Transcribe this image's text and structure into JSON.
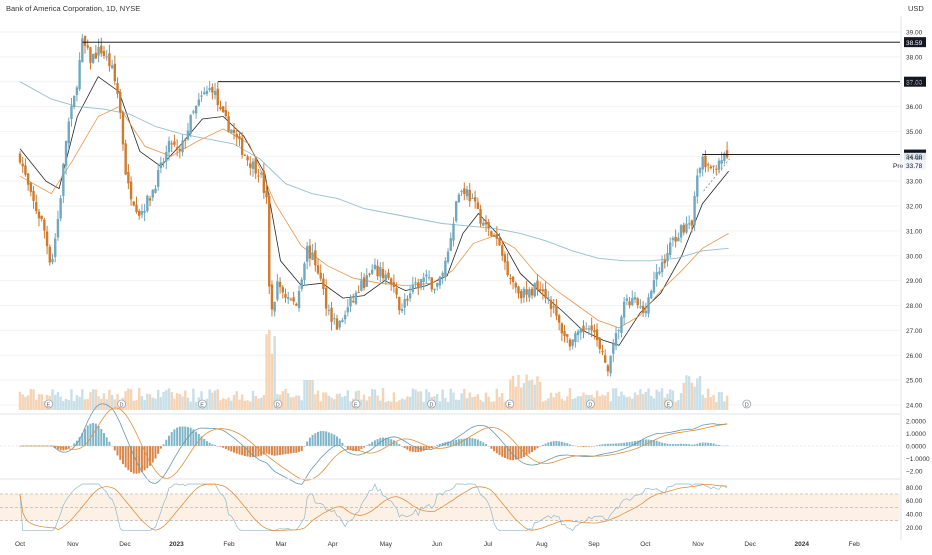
{
  "header": {
    "title": "Bank of America Corporation, 1D, NYSE",
    "currency": "USD"
  },
  "chart_data": {
    "type": "candlestick",
    "title": "Bank of America Corporation, 1D, NYSE",
    "price_axis": {
      "ylim": [
        23.8,
        39.4
      ],
      "ticks": [
        "24.00",
        "25.00",
        "26.00",
        "27.00",
        "28.00",
        "29.00",
        "30.00",
        "31.00",
        "32.00",
        "33.00",
        "34.00",
        "35.00",
        "36.00",
        "37.00",
        "38.00",
        "39.00"
      ]
    },
    "x_axis": {
      "range_months": [
        0,
        15.3
      ],
      "ticks": [
        {
          "label": "Oct",
          "m": 0
        },
        {
          "label": "Nov",
          "m": 1
        },
        {
          "label": "Dec",
          "m": 2
        },
        {
          "label": "2023",
          "m": 3
        },
        {
          "label": "Feb",
          "m": 4
        },
        {
          "label": "Mar",
          "m": 5
        },
        {
          "label": "Apr",
          "m": 6
        },
        {
          "label": "May",
          "m": 7
        },
        {
          "label": "Jun",
          "m": 8
        },
        {
          "label": "Jul",
          "m": 9
        },
        {
          "label": "Aug",
          "m": 10
        },
        {
          "label": "Sep",
          "m": 11
        },
        {
          "label": "Oct",
          "m": 12
        },
        {
          "label": "Nov",
          "m": 13
        },
        {
          "label": "Dec",
          "m": 14
        },
        {
          "label": "2024",
          "m": 15
        },
        {
          "label": "Feb",
          "m": 16
        }
      ]
    },
    "price_path": [
      [
        0,
        34.0
      ],
      [
        0.2,
        32.4
      ],
      [
        0.45,
        31.2
      ],
      [
        0.6,
        29.6
      ],
      [
        0.75,
        31.8
      ],
      [
        0.9,
        35.0
      ],
      [
        1.05,
        36.4
      ],
      [
        1.2,
        38.6
      ],
      [
        1.35,
        37.9
      ],
      [
        1.55,
        38.3
      ],
      [
        1.75,
        37.6
      ],
      [
        1.9,
        36.3
      ],
      [
        2.05,
        32.9
      ],
      [
        2.3,
        31.7
      ],
      [
        2.5,
        32.4
      ],
      [
        2.7,
        33.5
      ],
      [
        2.9,
        34.6
      ],
      [
        3.05,
        34.0
      ],
      [
        3.3,
        35.6
      ],
      [
        3.5,
        36.4
      ],
      [
        3.7,
        36.8
      ],
      [
        3.85,
        35.7
      ],
      [
        4.05,
        35.1
      ],
      [
        4.2,
        34.5
      ],
      [
        4.4,
        33.8
      ],
      [
        4.6,
        33.4
      ],
      [
        4.75,
        32.0
      ],
      [
        4.8,
        27.4
      ],
      [
        4.95,
        28.9
      ],
      [
        5.1,
        28.4
      ],
      [
        5.3,
        28.0
      ],
      [
        5.5,
        30.3
      ],
      [
        5.7,
        29.6
      ],
      [
        5.9,
        27.9
      ],
      [
        6.1,
        27.1
      ],
      [
        6.3,
        27.9
      ],
      [
        6.55,
        28.8
      ],
      [
        6.8,
        29.4
      ],
      [
        7.05,
        29.2
      ],
      [
        7.3,
        27.9
      ],
      [
        7.5,
        28.5
      ],
      [
        7.75,
        29.1
      ],
      [
        8.0,
        28.7
      ],
      [
        8.2,
        30.0
      ],
      [
        8.4,
        32.5
      ],
      [
        8.55,
        32.7
      ],
      [
        8.75,
        31.9
      ],
      [
        8.95,
        31.1
      ],
      [
        9.15,
        30.6
      ],
      [
        9.35,
        29.5
      ],
      [
        9.55,
        28.6
      ],
      [
        9.75,
        28.4
      ],
      [
        9.95,
        28.9
      ],
      [
        10.15,
        28.3
      ],
      [
        10.35,
        27.2
      ],
      [
        10.55,
        26.5
      ],
      [
        10.75,
        26.8
      ],
      [
        10.95,
        27.4
      ],
      [
        11.15,
        26.0
      ],
      [
        11.3,
        25.5
      ],
      [
        11.45,
        26.8
      ],
      [
        11.6,
        28.0
      ],
      [
        11.8,
        28.2
      ],
      [
        11.95,
        27.7
      ],
      [
        12.15,
        28.8
      ],
      [
        12.35,
        29.8
      ],
      [
        12.55,
        30.7
      ],
      [
        12.75,
        31.2
      ],
      [
        12.9,
        31.4
      ],
      [
        12.95,
        32.6
      ],
      [
        13.1,
        33.9
      ],
      [
        13.25,
        33.3
      ],
      [
        13.45,
        34.0
      ],
      [
        13.6,
        33.8
      ]
    ],
    "moving_averages": [
      {
        "color": "#000000",
        "path": [
          [
            0,
            34.3
          ],
          [
            0.5,
            33.0
          ],
          [
            0.75,
            32.7
          ],
          [
            1.1,
            35.6
          ],
          [
            1.5,
            37.2
          ],
          [
            1.9,
            36.6
          ],
          [
            2.3,
            34.2
          ],
          [
            2.7,
            33.6
          ],
          [
            3.1,
            34.5
          ],
          [
            3.5,
            35.5
          ],
          [
            3.9,
            35.6
          ],
          [
            4.3,
            34.8
          ],
          [
            4.7,
            33.3
          ],
          [
            5.0,
            29.8
          ],
          [
            5.4,
            28.8
          ],
          [
            5.8,
            28.9
          ],
          [
            6.2,
            28.3
          ],
          [
            6.6,
            28.4
          ],
          [
            7.0,
            29.0
          ],
          [
            7.4,
            28.6
          ],
          [
            7.8,
            28.8
          ],
          [
            8.2,
            29.2
          ],
          [
            8.5,
            30.9
          ],
          [
            8.8,
            31.7
          ],
          [
            9.2,
            30.8
          ],
          [
            9.6,
            29.3
          ],
          [
            10.0,
            28.5
          ],
          [
            10.4,
            27.8
          ],
          [
            10.8,
            27.0
          ],
          [
            11.2,
            26.6
          ],
          [
            11.5,
            26.4
          ],
          [
            11.9,
            27.7
          ],
          [
            12.3,
            28.5
          ],
          [
            12.7,
            30.0
          ],
          [
            13.1,
            32.1
          ],
          [
            13.6,
            33.4
          ]
        ]
      },
      {
        "color": "#e8893a",
        "path": [
          [
            0,
            33.2
          ],
          [
            0.6,
            32.5
          ],
          [
            1.0,
            33.8
          ],
          [
            1.5,
            35.6
          ],
          [
            1.9,
            36.0
          ],
          [
            2.4,
            34.4
          ],
          [
            2.9,
            34.0
          ],
          [
            3.4,
            34.6
          ],
          [
            3.9,
            35.1
          ],
          [
            4.4,
            34.5
          ],
          [
            4.9,
            32.1
          ],
          [
            5.4,
            30.4
          ],
          [
            5.9,
            29.6
          ],
          [
            6.4,
            29.1
          ],
          [
            6.9,
            28.9
          ],
          [
            7.4,
            28.8
          ],
          [
            7.9,
            28.9
          ],
          [
            8.3,
            29.4
          ],
          [
            8.7,
            30.5
          ],
          [
            9.1,
            30.8
          ],
          [
            9.5,
            30.3
          ],
          [
            9.9,
            29.3
          ],
          [
            10.3,
            28.6
          ],
          [
            10.7,
            28.0
          ],
          [
            11.1,
            27.4
          ],
          [
            11.5,
            27.1
          ],
          [
            11.9,
            27.6
          ],
          [
            12.3,
            28.6
          ],
          [
            12.7,
            29.4
          ],
          [
            13.1,
            30.3
          ],
          [
            13.6,
            30.9
          ]
        ]
      },
      {
        "color": "#89b8c8",
        "path": [
          [
            0,
            37.0
          ],
          [
            0.6,
            36.3
          ],
          [
            1.1,
            36.0
          ],
          [
            1.6,
            35.9
          ],
          [
            2.1,
            35.7
          ],
          [
            2.6,
            35.2
          ],
          [
            3.1,
            34.9
          ],
          [
            3.6,
            34.7
          ],
          [
            4.1,
            34.5
          ],
          [
            4.6,
            33.9
          ],
          [
            5.1,
            32.9
          ],
          [
            5.6,
            32.5
          ],
          [
            6.1,
            32.3
          ],
          [
            6.6,
            31.9
          ],
          [
            7.1,
            31.7
          ],
          [
            7.6,
            31.5
          ],
          [
            8.1,
            31.3
          ],
          [
            8.6,
            31.2
          ],
          [
            9.1,
            31.1
          ],
          [
            9.6,
            30.9
          ],
          [
            10.1,
            30.6
          ],
          [
            10.6,
            30.2
          ],
          [
            11.1,
            29.9
          ],
          [
            11.6,
            29.8
          ],
          [
            12.1,
            29.8
          ],
          [
            12.6,
            29.9
          ],
          [
            13.1,
            30.2
          ],
          [
            13.6,
            30.3
          ]
        ]
      }
    ],
    "resistance_levels": [
      {
        "value": 38.59,
        "label": "38.59",
        "start_m": 1.2
      },
      {
        "value": 37.0,
        "label": "37.00",
        "start_m": 3.8
      },
      {
        "value": 34.07,
        "label": "34.07",
        "start_m": 13.1
      }
    ],
    "price_labels": [
      {
        "value": 33.9,
        "label": "33.90",
        "prefix": ""
      },
      {
        "value": 33.78,
        "label": "33.78",
        "prefix": "Pre"
      }
    ],
    "event_markers": [
      {
        "m": 0.55,
        "letter": "E"
      },
      {
        "m": 1.95,
        "letter": "D"
      },
      {
        "m": 3.5,
        "letter": "E"
      },
      {
        "m": 4.95,
        "letter": "D"
      },
      {
        "m": 6.45,
        "letter": "E"
      },
      {
        "m": 7.9,
        "letter": "D"
      },
      {
        "m": 9.4,
        "letter": "E"
      },
      {
        "m": 10.95,
        "letter": "D"
      },
      {
        "m": 12.45,
        "letter": "E"
      },
      {
        "m": 13.95,
        "letter": "D"
      }
    ],
    "macd_panel": {
      "ticks": [
        "2.0000",
        "1.0000",
        "0.0000",
        "−1.0000",
        "−2.00"
      ],
      "ylim": [
        -2.4,
        2.4
      ]
    },
    "rsi_panel": {
      "ticks": [
        "80.00",
        "60.00",
        "40.00",
        "20.00"
      ],
      "ylim": [
        10,
        88
      ],
      "bands": [
        70,
        50,
        30
      ]
    }
  }
}
